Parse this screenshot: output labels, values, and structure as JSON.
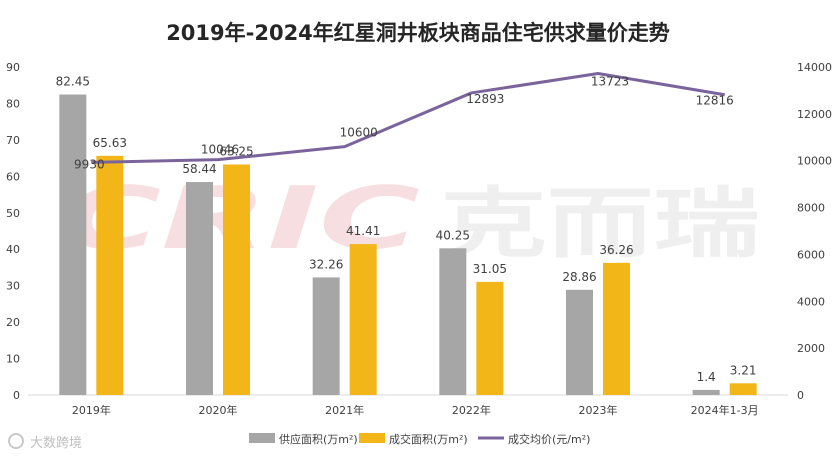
{
  "chart_data": {
    "type": "bar",
    "title": "2019年-2024年红星洞井板块商品住宅供求量价走势",
    "categories": [
      "2019年",
      "2020年",
      "2021年",
      "2022年",
      "2023年",
      "2024年1-3月"
    ],
    "series": [
      {
        "name": "供应面积(万m²)",
        "type": "bar",
        "axis": "left",
        "color": "#a6a6a6",
        "values": [
          82.45,
          58.44,
          32.26,
          40.25,
          28.86,
          1.4
        ],
        "labels": [
          "82.45",
          "58.44",
          "32.26",
          "40.25",
          "28.86",
          "1.4"
        ]
      },
      {
        "name": "成交面积(万m²)",
        "type": "bar",
        "axis": "left",
        "color": "#f2b619",
        "values": [
          65.63,
          63.25,
          41.41,
          31.05,
          36.26,
          3.21
        ],
        "labels": [
          "65.63",
          "63.25",
          "41.41",
          "31.05",
          "36.26",
          "3.21"
        ]
      },
      {
        "name": "成交均价(元/m²)",
        "type": "line",
        "axis": "right",
        "color": "#7b649c",
        "values": [
          9930,
          10046,
          10600,
          12893,
          13723,
          12816
        ],
        "labels": [
          "9930",
          "10046",
          "10600",
          "12893",
          "13723",
          "12816"
        ]
      }
    ],
    "y_left": {
      "range": [
        0,
        90
      ],
      "ticks": [
        "0",
        "10",
        "20",
        "30",
        "40",
        "50",
        "60",
        "70",
        "80",
        "90"
      ]
    },
    "y_right": {
      "range": [
        0,
        14000
      ],
      "ticks": [
        "0",
        "2000",
        "4000",
        "6000",
        "8000",
        "10000",
        "12000",
        "14000"
      ]
    },
    "legend": {
      "position": "bottom"
    },
    "grid": false
  },
  "watermark": {
    "brand_latin": "CRIC",
    "brand_cn": "克而瑞"
  },
  "footer": {
    "source_logo": "大数跨境"
  },
  "colors": {
    "supply": "#a6a6a6",
    "deal": "#f2b619",
    "price": "#7b649c",
    "text": "#404040",
    "axis": "#d9d9d9"
  }
}
